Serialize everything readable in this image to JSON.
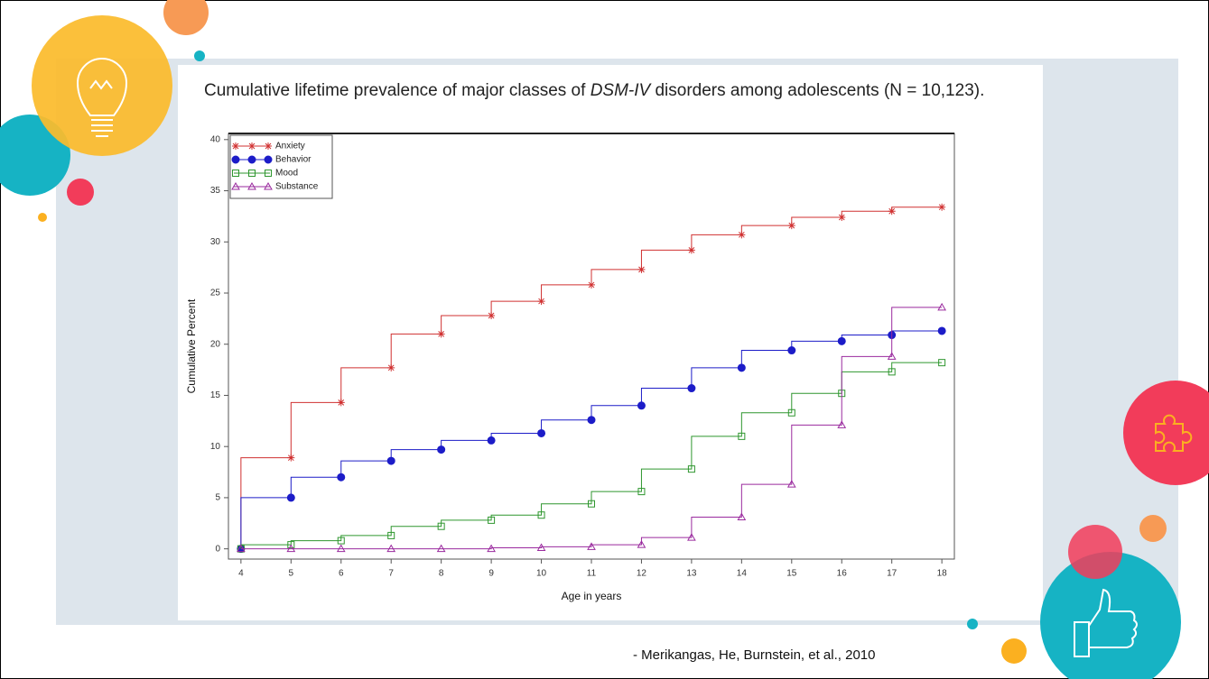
{
  "chart_data": {
    "type": "step-line",
    "title_parts": [
      "Cumulative lifetime prevalence of major classes of ",
      "DSM-IV",
      " disorders among adolescents (N = 10,123)."
    ],
    "x_label": "Age in years",
    "y_label": "Cumulative Percent",
    "x": [
      4,
      5,
      6,
      7,
      8,
      9,
      10,
      11,
      12,
      13,
      14,
      15,
      16,
      17,
      18
    ],
    "xlim": [
      3.75,
      18.25
    ],
    "xticks": [
      4,
      5,
      6,
      7,
      8,
      9,
      10,
      11,
      12,
      13,
      14,
      15,
      16,
      17,
      18
    ],
    "ylim": [
      -1,
      40.6
    ],
    "yticks": [
      0,
      5,
      10,
      15,
      20,
      25,
      30,
      35,
      40
    ],
    "legend": "top-left",
    "series": [
      {
        "name": "Anxiety",
        "color": "#d03030",
        "marker": "star",
        "values": [
          0,
          8.9,
          14.3,
          17.7,
          21.0,
          22.8,
          24.2,
          25.8,
          27.3,
          29.2,
          30.7,
          31.6,
          32.4,
          33.0,
          33.4
        ]
      },
      {
        "name": "Behavior",
        "color": "#1c1cc8",
        "marker": "circle",
        "values": [
          0,
          5.0,
          7.0,
          8.6,
          9.7,
          10.6,
          11.3,
          12.6,
          14.0,
          15.7,
          17.7,
          19.4,
          20.3,
          20.9,
          21.3
        ]
      },
      {
        "name": "Mood",
        "color": "#2e962e",
        "marker": "square",
        "values": [
          0,
          0.4,
          0.8,
          1.3,
          2.2,
          2.8,
          3.3,
          4.4,
          5.6,
          7.8,
          11.0,
          13.3,
          15.2,
          17.3,
          18.2
        ]
      },
      {
        "name": "Substance",
        "color": "#9a2a9e",
        "marker": "triangle",
        "values": [
          0,
          0,
          0,
          0,
          0,
          0,
          0.1,
          0.2,
          0.4,
          1.1,
          3.1,
          6.3,
          12.1,
          18.8,
          23.6
        ]
      }
    ]
  },
  "citation": "- Merikangas, He, Burnstein, et al., 2010"
}
